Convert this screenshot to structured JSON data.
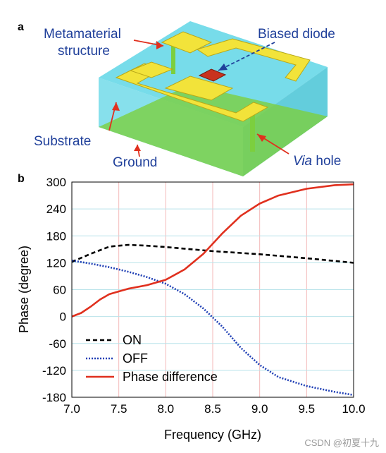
{
  "figure": {
    "panel_a_label": "a",
    "panel_b_label": "b",
    "callouts": {
      "metamaterial": [
        "Metamaterial",
        "structure"
      ],
      "biased_diode": "Biased diode",
      "substrate": "Substrate",
      "ground": "Ground",
      "via_italic": "Via",
      "via_rest": " hole"
    },
    "watermark": "CSDN @初夏十九"
  },
  "colors": {
    "substrate": "#5fd6e6",
    "ground": "#7ccf3e",
    "metal": "#f2e33a",
    "diode": "#c8321e",
    "callout_text": "#1f3f9a",
    "arrow": "#e0301e",
    "series_on": "#000000",
    "series_off": "#1f3fb5",
    "series_diff": "#e0301e"
  },
  "chart_data": {
    "type": "line",
    "title": "",
    "xlabel": "Frequency (GHz)",
    "ylabel": "Phase (degree)",
    "xlim": [
      7.0,
      10.0
    ],
    "ylim": [
      -180,
      300
    ],
    "xticks": [
      "7.0",
      "7.5",
      "8.0",
      "8.5",
      "9.0",
      "9.5",
      "10.0"
    ],
    "yticks": [
      "300",
      "240",
      "180",
      "120",
      "60",
      "0",
      "-60",
      "-120",
      "-180"
    ],
    "legend_position": "bottom-left",
    "series": [
      {
        "name": "ON",
        "style": "dashed",
        "x": [
          7.0,
          7.2,
          7.4,
          7.6,
          7.8,
          8.0,
          8.5,
          9.0,
          9.5,
          10.0
        ],
        "values": [
          122,
          140,
          156,
          160,
          158,
          155,
          146,
          139,
          130,
          120
        ]
      },
      {
        "name": "OFF",
        "style": "dotted",
        "x": [
          7.0,
          7.2,
          7.4,
          7.6,
          7.8,
          8.0,
          8.2,
          8.4,
          8.6,
          8.8,
          9.0,
          9.2,
          9.5,
          9.8,
          10.0
        ],
        "values": [
          125,
          118,
          110,
          100,
          88,
          73,
          50,
          18,
          -22,
          -70,
          -108,
          -135,
          -155,
          -168,
          -175
        ]
      },
      {
        "name": "Phase difference",
        "style": "solid",
        "x": [
          7.0,
          7.1,
          7.2,
          7.3,
          7.4,
          7.5,
          7.6,
          7.8,
          8.0,
          8.2,
          8.4,
          8.6,
          8.8,
          9.0,
          9.2,
          9.5,
          9.8,
          10.0
        ],
        "values": [
          0,
          8,
          22,
          38,
          50,
          56,
          62,
          70,
          82,
          105,
          140,
          185,
          225,
          252,
          270,
          285,
          293,
          295
        ]
      }
    ]
  }
}
